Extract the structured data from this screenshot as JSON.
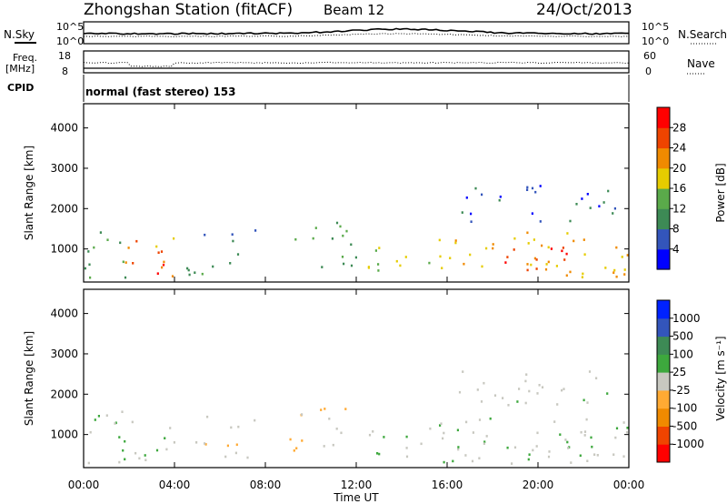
{
  "header": {
    "station": "Zhongshan Station (fitACF)",
    "beam": "Beam 12",
    "date": "24/Oct/2013"
  },
  "noise_panel": {
    "left_label": "N.Sky",
    "left_ticks": [
      "10^5",
      "10^0"
    ],
    "right_ticks": [
      "10^5",
      "10^0"
    ],
    "right_label": "N.Search"
  },
  "freq_panel": {
    "left_label_1": "Freq.",
    "left_label_2": "[MHz]",
    "left_ticks": [
      "18",
      "8"
    ],
    "right_ticks": [
      "60",
      "0"
    ],
    "right_label": "Nave"
  },
  "cpid_panel": {
    "label": "CPID",
    "mode": "normal (fast stereo) 153"
  },
  "power_panel": {
    "ylabel": "Slant Range [km]",
    "yticks": [
      "4000",
      "3000",
      "2000",
      "1000"
    ],
    "colorbar_label": "Power [dB]",
    "colorbar_ticks": [
      "28",
      "24",
      "20",
      "16",
      "12",
      "8",
      "4"
    ],
    "colors": [
      "#0000ff",
      "#3355bb",
      "#3d8a55",
      "#5aaa4a",
      "#e6cc00",
      "#f08a00",
      "#ee4400",
      "#ff0000"
    ]
  },
  "velocity_panel": {
    "ylabel": "Slant Range [km]",
    "yticks": [
      "4000",
      "3000",
      "2000",
      "1000"
    ],
    "colorbar_label": "Velocity [m s⁻¹]",
    "colorbar_ticks": [
      "1000",
      "500",
      "100",
      "25",
      "-25",
      "-100",
      "-500",
      "-1000"
    ],
    "colors": [
      "#ff0000",
      "#f04400",
      "#f08a00",
      "#ffaa33",
      "#c8c8c0",
      "#3da83d",
      "#3d8a55",
      "#3355bb",
      "#0022ff"
    ]
  },
  "xaxis": {
    "ticks": [
      "00:00",
      "04:00",
      "08:00",
      "12:00",
      "16:00",
      "20:00",
      "00:00"
    ],
    "label": "Time UT"
  },
  "chart_data": {
    "type": "heatmap",
    "title": "Zhongshan Station (fitACF)",
    "xlabel": "Time UT",
    "ylabel": "Slant Range [km]",
    "xlim": [
      0,
      24
    ],
    "ylim": [
      180,
      4600
    ],
    "power_colorbar_range": [
      0,
      32
    ],
    "velocity_colorbar_range": [
      -1200,
      1200
    ],
    "scatter_regions": [
      {
        "t": [
          0.0,
          1.8
        ],
        "r": [
          300,
          1650
        ],
        "power": 12,
        "velocity": 100
      },
      {
        "t": [
          1.5,
          4.0
        ],
        "r": [
          350,
          1400
        ],
        "power": 22,
        "velocity": 150
      },
      {
        "t": [
          2.5,
          3.8
        ],
        "r": [
          300,
          700
        ],
        "power": 28,
        "velocity": -100
      },
      {
        "t": [
          4.0,
          7.5
        ],
        "r": [
          350,
          900
        ],
        "power": 12,
        "velocity": -100
      },
      {
        "t": [
          5.0,
          8.0
        ],
        "r": [
          1200,
          1500
        ],
        "power": 8,
        "velocity": -25
      },
      {
        "t": [
          9.0,
          12.0
        ],
        "r": [
          500,
          1700
        ],
        "power": 12,
        "velocity": -100
      },
      {
        "t": [
          12.5,
          16.0
        ],
        "r": [
          400,
          1200
        ],
        "power": 16,
        "velocity": 100
      },
      {
        "t": [
          15.5,
          24.0
        ],
        "r": [
          300,
          1500
        ],
        "power": 20,
        "velocity": 100
      },
      {
        "t": [
          18.5,
          22.5
        ],
        "r": [
          400,
          1100
        ],
        "power": 28,
        "velocity": 100
      },
      {
        "t": [
          16.5,
          23.5
        ],
        "r": [
          1700,
          2600
        ],
        "power": 6,
        "velocity": 25
      }
    ]
  }
}
